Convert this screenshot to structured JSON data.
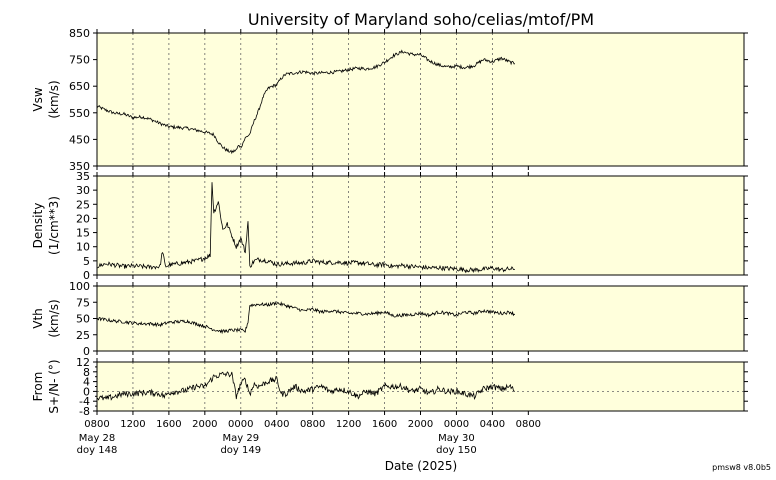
{
  "title": "University of Maryland  soho/celias/mtof/PM",
  "footer_version": "pmsw8 v8.0b5",
  "colors": {
    "panel_bg": "#ffffdc",
    "line": "#000000",
    "grid": "#666666"
  },
  "chart_data": {
    "type": "line",
    "x_axis": {
      "label": "Date (2025)",
      "units": "hours since 2025-05-28 08:00",
      "range": [
        0,
        72
      ],
      "ticks": [
        {
          "x": 0,
          "label": "0800"
        },
        {
          "x": 4,
          "label": "1200"
        },
        {
          "x": 8,
          "label": "1600"
        },
        {
          "x": 12,
          "label": "2000"
        },
        {
          "x": 16,
          "label": "0000"
        },
        {
          "x": 20,
          "label": "0400"
        },
        {
          "x": 24,
          "label": "0800"
        },
        {
          "x": 28,
          "label": "1200"
        },
        {
          "x": 32,
          "label": "1600"
        },
        {
          "x": 36,
          "label": "2000"
        },
        {
          "x": 40,
          "label": "0000"
        },
        {
          "x": 44,
          "label": "0400"
        },
        {
          "x": 48,
          "label": "0800"
        }
      ],
      "date_labels": [
        {
          "x": 0,
          "line1": "May 28",
          "line2": "doy 148"
        },
        {
          "x": 16,
          "line1": "May 29",
          "line2": "doy 149"
        },
        {
          "x": 40,
          "line1": "May 30",
          "line2": "doy 150"
        }
      ]
    },
    "panels": [
      {
        "name": "Vsw",
        "ylabel_line1": "Vsw",
        "ylabel_line2": "(km/s)",
        "ylim": [
          350,
          850
        ],
        "yticks": [
          350,
          450,
          550,
          650,
          750,
          850
        ],
        "noise": 6,
        "points": [
          [
            0,
            575
          ],
          [
            1,
            560
          ],
          [
            2,
            548
          ],
          [
            3,
            545
          ],
          [
            4,
            532
          ],
          [
            5,
            535
          ],
          [
            6,
            525
          ],
          [
            7,
            510
          ],
          [
            8,
            498
          ],
          [
            9,
            495
          ],
          [
            10,
            492
          ],
          [
            11,
            485
          ],
          [
            12,
            478
          ],
          [
            13,
            468
          ],
          [
            13.5,
            440
          ],
          [
            14,
            420
          ],
          [
            14.5,
            408
          ],
          [
            15,
            402
          ],
          [
            15.5,
            410
          ],
          [
            15.8,
            430
          ],
          [
            16,
            420
          ],
          [
            16.5,
            455
          ],
          [
            17,
            470
          ],
          [
            17.5,
            520
          ],
          [
            18,
            560
          ],
          [
            18.5,
            610
          ],
          [
            19,
            640
          ],
          [
            19.5,
            650
          ],
          [
            20,
            655
          ],
          [
            20.5,
            680
          ],
          [
            21,
            695
          ],
          [
            22,
            700
          ],
          [
            23,
            705
          ],
          [
            24,
            698
          ],
          [
            25,
            700
          ],
          [
            26,
            702
          ],
          [
            27,
            705
          ],
          [
            28,
            712
          ],
          [
            29,
            718
          ],
          [
            30,
            715
          ],
          [
            31,
            722
          ],
          [
            32,
            740
          ],
          [
            33,
            765
          ],
          [
            34,
            780
          ],
          [
            35,
            770
          ],
          [
            36,
            768
          ],
          [
            37,
            745
          ],
          [
            38,
            730
          ],
          [
            39,
            722
          ],
          [
            40,
            725
          ],
          [
            41,
            720
          ],
          [
            42,
            728
          ],
          [
            43,
            750
          ],
          [
            44,
            742
          ],
          [
            45,
            755
          ],
          [
            46,
            740
          ],
          [
            46.5,
            735
          ]
        ]
      },
      {
        "name": "Density",
        "ylabel_line1": "Density",
        "ylabel_line2": "(1/cm**3)",
        "ylim": [
          0,
          35
        ],
        "yticks": [
          0,
          5,
          10,
          15,
          20,
          25,
          30,
          35
        ],
        "noise": 0.8,
        "points": [
          [
            0,
            3
          ],
          [
            1,
            4
          ],
          [
            2,
            3.5
          ],
          [
            3,
            3
          ],
          [
            4,
            3.2
          ],
          [
            5,
            3
          ],
          [
            6,
            2.8
          ],
          [
            7,
            3
          ],
          [
            7.3,
            8.5
          ],
          [
            7.6,
            3
          ],
          [
            8,
            3.5
          ],
          [
            9,
            4
          ],
          [
            10,
            4.5
          ],
          [
            11,
            5
          ],
          [
            11.5,
            5.5
          ],
          [
            12,
            6
          ],
          [
            12.6,
            7
          ],
          [
            12.8,
            33
          ],
          [
            13,
            22
          ],
          [
            13.5,
            26
          ],
          [
            14,
            16
          ],
          [
            14.5,
            18
          ],
          [
            15,
            14
          ],
          [
            15.5,
            10
          ],
          [
            16,
            13
          ],
          [
            16.5,
            8
          ],
          [
            16.8,
            19
          ],
          [
            17,
            3
          ],
          [
            17.5,
            5
          ],
          [
            18,
            5.5
          ],
          [
            19,
            5
          ],
          [
            20,
            3.8
          ],
          [
            21,
            4
          ],
          [
            22,
            4.2
          ],
          [
            23,
            4.3
          ],
          [
            24,
            5
          ],
          [
            25,
            4.5
          ],
          [
            26,
            4.4
          ],
          [
            27,
            4.5
          ],
          [
            28,
            4.2
          ],
          [
            29,
            4.4
          ],
          [
            30,
            4
          ],
          [
            31,
            3.5
          ],
          [
            32,
            3.8
          ],
          [
            33,
            3
          ],
          [
            34,
            3.4
          ],
          [
            35,
            3
          ],
          [
            36,
            2.8
          ],
          [
            37,
            2.5
          ],
          [
            38,
            2.6
          ],
          [
            39,
            2.3
          ],
          [
            40,
            2.2
          ],
          [
            41,
            1.8
          ],
          [
            42,
            1.8
          ],
          [
            43,
            2
          ],
          [
            44,
            2.5
          ],
          [
            45,
            1.8
          ],
          [
            46,
            2.2
          ],
          [
            46.5,
            2
          ]
        ]
      },
      {
        "name": "Vth",
        "ylabel_line1": "Vth",
        "ylabel_line2": "(km/s)",
        "ylim": [
          0,
          100
        ],
        "yticks": [
          0,
          25,
          50,
          75,
          100
        ],
        "noise": 2.5,
        "points": [
          [
            0,
            50
          ],
          [
            1,
            48
          ],
          [
            2,
            46
          ],
          [
            3,
            45
          ],
          [
            4,
            43
          ],
          [
            5,
            42
          ],
          [
            6,
            42
          ],
          [
            7,
            40
          ],
          [
            8,
            44
          ],
          [
            9,
            45
          ],
          [
            10,
            46
          ],
          [
            11,
            42
          ],
          [
            12,
            38
          ],
          [
            13,
            33
          ],
          [
            14,
            30
          ],
          [
            15,
            32
          ],
          [
            16,
            32
          ],
          [
            16.5,
            30
          ],
          [
            16.8,
            45
          ],
          [
            17,
            70
          ],
          [
            18,
            72
          ],
          [
            19,
            71
          ],
          [
            20,
            74
          ],
          [
            21,
            70
          ],
          [
            22,
            66
          ],
          [
            23,
            62
          ],
          [
            24,
            64
          ],
          [
            25,
            60
          ],
          [
            26,
            62
          ],
          [
            27,
            60
          ],
          [
            28,
            58
          ],
          [
            29,
            58
          ],
          [
            30,
            57
          ],
          [
            31,
            58
          ],
          [
            32,
            60
          ],
          [
            33,
            54
          ],
          [
            34,
            55
          ],
          [
            35,
            56
          ],
          [
            36,
            58
          ],
          [
            37,
            55
          ],
          [
            38,
            60
          ],
          [
            39,
            58
          ],
          [
            40,
            55
          ],
          [
            41,
            60
          ],
          [
            42,
            58
          ],
          [
            43,
            62
          ],
          [
            44,
            60
          ],
          [
            45,
            58
          ],
          [
            46,
            60
          ],
          [
            46.5,
            56
          ]
        ]
      },
      {
        "name": "From",
        "ylabel_line1": "From",
        "ylabel_line2": "S+/N- (°)",
        "ylim": [
          -8,
          12
        ],
        "yticks": [
          -8,
          -4,
          0,
          4,
          8,
          12
        ],
        "yticks_minor": [
          -6,
          -2,
          2,
          6,
          10
        ],
        "dotted_zero": true,
        "noise": 1.2,
        "points": [
          [
            0,
            -2.5
          ],
          [
            1,
            -3
          ],
          [
            2,
            -2
          ],
          [
            3,
            -1
          ],
          [
            4,
            -1
          ],
          [
            5,
            -0.5
          ],
          [
            6,
            -0.5
          ],
          [
            7,
            -1
          ],
          [
            7.5,
            -2
          ],
          [
            8,
            -0.5
          ],
          [
            9,
            0
          ],
          [
            10,
            0.5
          ],
          [
            11,
            2
          ],
          [
            12,
            2
          ],
          [
            12.5,
            4
          ],
          [
            13,
            6
          ],
          [
            14,
            7
          ],
          [
            15,
            7
          ],
          [
            15.5,
            -2
          ],
          [
            16,
            3
          ],
          [
            16.5,
            5
          ],
          [
            17,
            -1
          ],
          [
            17.5,
            3
          ],
          [
            18,
            2
          ],
          [
            19,
            4
          ],
          [
            20,
            5
          ],
          [
            20.5,
            -1
          ],
          [
            21,
            -1
          ],
          [
            22,
            2
          ],
          [
            23,
            0
          ],
          [
            24,
            1
          ],
          [
            25,
            2
          ],
          [
            26,
            0
          ],
          [
            27,
            1
          ],
          [
            28,
            0
          ],
          [
            29,
            -2
          ],
          [
            30,
            0
          ],
          [
            31,
            -1
          ],
          [
            32,
            2
          ],
          [
            33,
            2
          ],
          [
            34,
            2
          ],
          [
            35,
            0
          ],
          [
            36,
            1
          ],
          [
            37,
            -1
          ],
          [
            38,
            1
          ],
          [
            39,
            0
          ],
          [
            40,
            0
          ],
          [
            41,
            -1
          ],
          [
            42,
            -2
          ],
          [
            43,
            1
          ],
          [
            44,
            2
          ],
          [
            45,
            1
          ],
          [
            46,
            2
          ],
          [
            46.5,
            0
          ]
        ]
      }
    ]
  }
}
